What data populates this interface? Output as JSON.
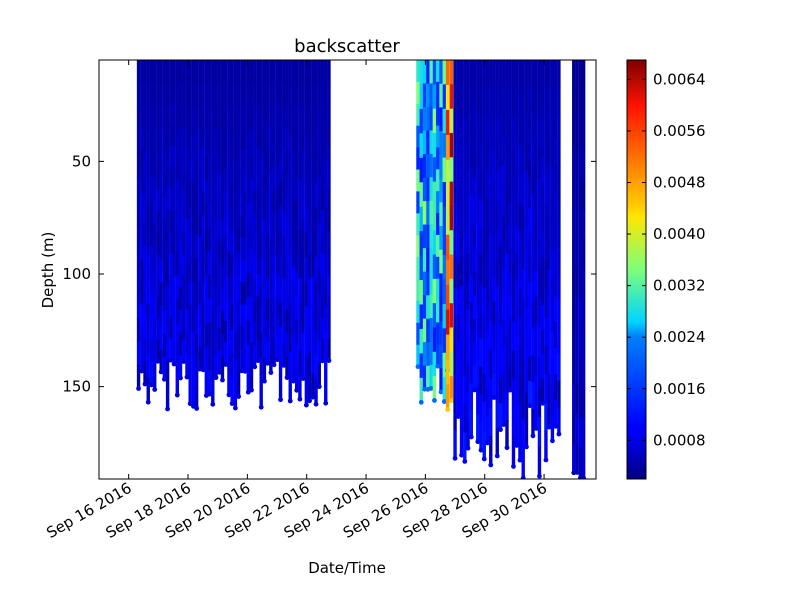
{
  "chart_data": {
    "type": "scatter",
    "title": "backscatter",
    "xlabel": "Date/Time",
    "ylabel": "Depth (m)",
    "x_ticks": [
      "Sep 16 2016",
      "Sep 18 2016",
      "Sep 20 2016",
      "Sep 22 2016",
      "Sep 24 2016",
      "Sep 26 2016",
      "Sep 28 2016",
      "Sep 30 2016"
    ],
    "xlim": [
      "2016-09-15",
      "2016-10-01 18:00"
    ],
    "y_ticks": [
      50,
      100,
      150
    ],
    "ylim": [
      191,
      5
    ],
    "y_inverted": true,
    "colorbar": {
      "colormap": "jet",
      "range": [
        0.0002,
        0.0067
      ],
      "ticks": [
        "0.0008",
        "0.0016",
        "0.0024",
        "0.0032",
        "0.0040",
        "0.0048",
        "0.0056",
        "0.0064"
      ]
    },
    "profile_groups": [
      {
        "start": "2016-09-16 08:00",
        "end": "2016-09-22 18:00",
        "depth_min": 5,
        "depth_max_range": [
          138,
          160
        ],
        "value_range": [
          0.0002,
          0.0015
        ]
      },
      {
        "start": "2016-09-25 18:00",
        "end": "2016-09-26 18:00",
        "depth_min": 5,
        "depth_max_range": [
          140,
          160
        ],
        "value_range": [
          0.0012,
          0.0036
        ]
      },
      {
        "start": "2016-09-26 18:00",
        "end": "2016-09-27 00:00",
        "depth_min": 5,
        "depth_max_range": [
          155,
          168
        ],
        "value_range": [
          0.003,
          0.0066
        ]
      },
      {
        "start": "2016-09-27 00:00",
        "end": "2016-09-30 12:00",
        "depth_min": 5,
        "depth_max_range": [
          150,
          191
        ],
        "value_range": [
          0.0002,
          0.0018
        ]
      },
      {
        "start": "2016-10-01 00:00",
        "end": "2016-10-01 08:00",
        "depth_min": 5,
        "depth_max_range": [
          188,
          191
        ],
        "value_range": [
          0.0002,
          0.001
        ]
      }
    ]
  }
}
